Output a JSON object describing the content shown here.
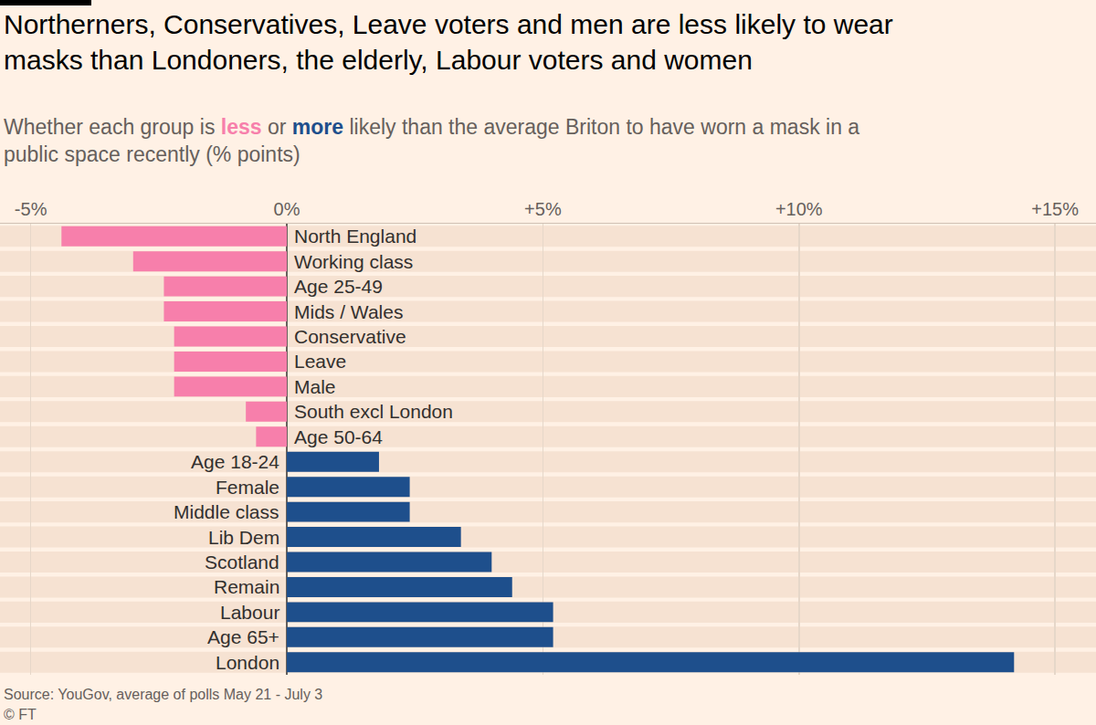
{
  "chart_data": {
    "type": "bar",
    "orientation": "horizontal",
    "title": "Northerners, Conservatives, Leave voters and men are less likely to wear masks than Londoners, the elderly, Labour voters and women",
    "subtitle": [
      {
        "text": "Whether each group is "
      },
      {
        "text": "less",
        "color": "#f77fab"
      },
      {
        "text": " or "
      },
      {
        "text": "more",
        "color": "#1e4f8c"
      },
      {
        "text": " likely than the average Briton to have worn a mask in a public space recently (% points)"
      }
    ],
    "source": "Source: YouGov, average of polls May 21 - July 3",
    "credit": "© FT",
    "categories": [
      "North England",
      "Working class",
      "Age 25-49",
      "Mids / Wales",
      "Conservative",
      "Leave",
      "Male",
      "South excl London",
      "Age 50-64",
      "Age 18-24",
      "Female",
      "Middle class",
      "Lib Dem",
      "Scotland",
      "Remain",
      "Labour",
      "Age 65+",
      "London"
    ],
    "values": [
      -4.4,
      -3.0,
      -2.4,
      -2.4,
      -2.2,
      -2.2,
      -2.2,
      -0.8,
      -0.6,
      1.8,
      2.4,
      2.4,
      3.4,
      4.0,
      4.4,
      5.2,
      5.2,
      14.2
    ],
    "colors": [
      "#f77fab",
      "#f77fab",
      "#f77fab",
      "#f77fab",
      "#f77fab",
      "#f77fab",
      "#f77fab",
      "#f77fab",
      "#f77fab",
      "#1e4f8c",
      "#1e4f8c",
      "#1e4f8c",
      "#1e4f8c",
      "#1e4f8c",
      "#1e4f8c",
      "#1e4f8c",
      "#1e4f8c",
      "#1e4f8c"
    ],
    "xlim": [
      -5.6,
      15.8
    ],
    "xticks": [
      {
        "value": -5,
        "label": "-5%"
      },
      {
        "value": 0,
        "label": "0%"
      },
      {
        "value": 5,
        "label": "+5%"
      },
      {
        "value": 10,
        "label": "+10%"
      },
      {
        "value": 15,
        "label": "+15%"
      }
    ],
    "grid": true
  }
}
